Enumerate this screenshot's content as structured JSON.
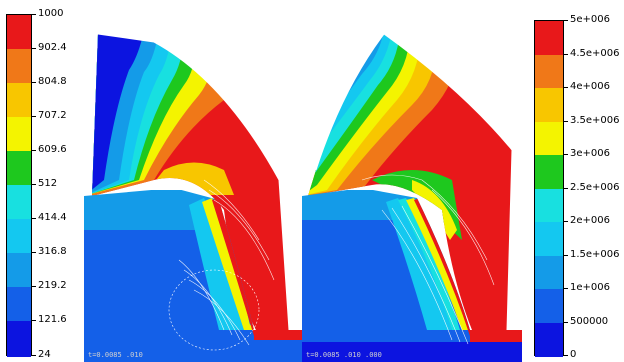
{
  "left_colorbar": {
    "labels": [
      "1000",
      "902.4",
      "804.8",
      "707.2",
      "609.6",
      "512",
      "414.4",
      "316.8",
      "219.2",
      "121.6",
      "24"
    ],
    "colors": [
      "#e8181a",
      "#f07818",
      "#f8c600",
      "#f4f400",
      "#1ec81e",
      "#18e0e0",
      "#14c8f0",
      "#149be8",
      "#1460e8",
      "#0c14e0"
    ]
  },
  "right_colorbar": {
    "labels": [
      "5e+006",
      "4.5e+006",
      "4e+006",
      "3.5e+006",
      "3e+006",
      "2.5e+006",
      "2e+006",
      "1.5e+006",
      "1e+006",
      "500000",
      "0"
    ],
    "colors": [
      "#e8181a",
      "#f07818",
      "#f8c600",
      "#f4f400",
      "#1ec81e",
      "#18e0e0",
      "#14c8f0",
      "#149be8",
      "#1460e8",
      "#0c14e0"
    ]
  },
  "left_panel": {
    "caption": "t=0.0085  .010"
  },
  "right_panel": {
    "caption": "t=0.0085  .010  .000"
  }
}
